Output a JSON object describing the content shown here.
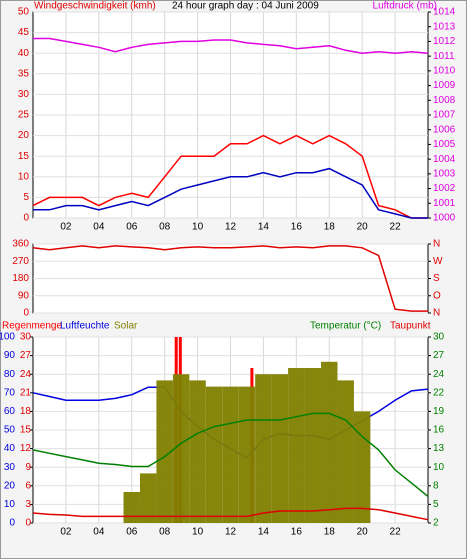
{
  "chart_data": [
    {
      "type": "line",
      "title": "24 hour graph day : 04 Juni 2009",
      "ylabel": "Windgeschwindigkeit (kmh)",
      "y2label": "Luftdruck (mb)",
      "x": [
        0,
        1,
        2,
        3,
        4,
        5,
        6,
        7,
        8,
        9,
        10,
        11,
        12,
        13,
        14,
        15,
        16,
        17,
        18,
        19,
        20,
        21,
        22,
        23,
        24
      ],
      "xticks": [
        {
          "value": 2,
          "label": "02"
        },
        {
          "value": 4,
          "label": "04"
        },
        {
          "value": 6,
          "label": "06"
        },
        {
          "value": 8,
          "label": "08"
        },
        10,
        12,
        14,
        16,
        18,
        20,
        22
      ],
      "xlim": [
        0,
        24
      ],
      "ylim": [
        0,
        50
      ],
      "yticks": [
        0,
        5,
        10,
        15,
        20,
        25,
        30,
        35,
        40,
        45,
        50
      ],
      "ycolor": "#e00000",
      "y2lim": [
        1000,
        1014
      ],
      "y2ticks": [
        1000,
        1001,
        1002,
        1003,
        1004,
        1005,
        1006,
        1007,
        1008,
        1009,
        1010,
        1011,
        1012,
        1013,
        1014
      ],
      "y2color": "#e000e0",
      "grid": true,
      "series": [
        {
          "color": "#ff0000",
          "values": [
            3,
            5,
            5,
            5,
            3,
            5,
            6,
            5,
            10,
            15,
            15,
            15,
            18,
            18,
            20,
            18,
            20,
            18,
            20,
            18,
            15,
            3,
            2,
            0,
            0
          ]
        },
        {
          "color": "#0000c0",
          "values": [
            2,
            2,
            3,
            3,
            2,
            3,
            4,
            3,
            5,
            7,
            8,
            9,
            10,
            10,
            11,
            10,
            11,
            11,
            12,
            10,
            8,
            2,
            1,
            0,
            0
          ]
        },
        {
          "color": "#e000e0",
          "axis": "y2",
          "values": [
            1012.2,
            1012.2,
            1012,
            1011.8,
            1011.6,
            1011.3,
            1011.6,
            1011.8,
            1011.9,
            1012,
            1012,
            1012.1,
            1012.1,
            1011.9,
            1011.8,
            1011.7,
            1011.5,
            1011.6,
            1011.7,
            1011.4,
            1011.2,
            1011.3,
            1011.2,
            1011.3,
            1011.2
          ]
        }
      ]
    },
    {
      "type": "line",
      "x": [
        0,
        1,
        2,
        3,
        4,
        5,
        6,
        7,
        8,
        9,
        10,
        11,
        12,
        13,
        14,
        15,
        16,
        17,
        18,
        19,
        20,
        21,
        22,
        23,
        24
      ],
      "xlim": [
        0,
        24
      ],
      "ylim": [
        0,
        360
      ],
      "yticks": [
        0,
        90,
        180,
        270,
        360
      ],
      "ycolor": "#e00000",
      "y2lim": [
        0,
        360
      ],
      "y2ticks": [
        {
          "value": 0,
          "label": "N"
        },
        {
          "value": 90,
          "label": "O"
        },
        {
          "value": 180,
          "label": "S"
        },
        {
          "value": 270,
          "label": "W"
        },
        {
          "value": 360,
          "label": "N"
        }
      ],
      "y2color": "#e00000",
      "grid": true,
      "series": [
        {
          "color": "#e00000",
          "values": [
            340,
            330,
            340,
            350,
            340,
            350,
            345,
            340,
            330,
            340,
            345,
            340,
            340,
            345,
            350,
            340,
            345,
            340,
            350,
            350,
            340,
            300,
            20,
            10,
            10
          ]
        }
      ]
    },
    {
      "type": "line",
      "x": [
        0,
        1,
        2,
        3,
        4,
        5,
        6,
        7,
        8,
        9,
        10,
        11,
        12,
        13,
        14,
        15,
        16,
        17,
        18,
        19,
        20,
        21,
        22,
        23,
        24
      ],
      "xticks": [
        {
          "value": 2,
          "label": "02"
        },
        {
          "value": 4,
          "label": "04"
        },
        {
          "value": 6,
          "label": "06"
        },
        {
          "value": 8,
          "label": "08"
        },
        10,
        12,
        14,
        16,
        18,
        20,
        22
      ],
      "xlim": [
        0,
        24
      ],
      "ylim": [
        0,
        100
      ],
      "yticks": [
        0,
        10,
        20,
        30,
        40,
        50,
        60,
        70,
        80,
        90,
        100
      ],
      "ycolor": "#0000e0",
      "y3lim": [
        0,
        30
      ],
      "y3ticks": [
        0,
        3,
        6,
        9,
        12,
        15,
        18,
        21,
        24,
        27,
        30
      ],
      "y3color": "#e00000",
      "y2lim": [
        2,
        30
      ],
      "y2ticks": [
        2,
        {
          "value": 4.8,
          "label": "5"
        },
        {
          "value": 7.6,
          "label": "8"
        },
        {
          "value": 10.4,
          "label": "10"
        },
        {
          "value": 13.2,
          "label": "13"
        },
        16,
        {
          "value": 18.8,
          "label": "19"
        },
        {
          "value": 21.6,
          "label": "22"
        },
        {
          "value": 24.4,
          "label": "24"
        },
        {
          "value": 27.2,
          "label": "27"
        },
        30
      ],
      "y2color": "#008000",
      "grid": true,
      "series": [
        {
          "name": "Regenmenge",
          "color": "#ff0000",
          "type": "bar",
          "axis": "y3",
          "x": [
            8.7,
            8.95,
            13.3
          ],
          "values": [
            30,
            30,
            25
          ]
        },
        {
          "name": "Luftfeuchte",
          "color": "#0000e0",
          "values": [
            70,
            68,
            66,
            66,
            66,
            67,
            69,
            73,
            73,
            60,
            52,
            45,
            40,
            35,
            45,
            48,
            47,
            47,
            45,
            50,
            55,
            60,
            66,
            71,
            72
          ]
        },
        {
          "name": "Solar",
          "color": "#808000",
          "type": "bar",
          "axis": "y3",
          "values": [
            0,
            0,
            0,
            0,
            0,
            0,
            5,
            8,
            23,
            24,
            23,
            22,
            22,
            22,
            24,
            24,
            25,
            25,
            26,
            23,
            18,
            0,
            0,
            0,
            0
          ]
        },
        {
          "name": "Temperatur (°C)",
          "color": "#008000",
          "axis": "y2",
          "values": [
            13,
            12.5,
            12,
            11.5,
            11,
            10.8,
            10.5,
            10.5,
            12,
            14,
            15.5,
            16.5,
            17,
            17.5,
            17.5,
            17.5,
            18,
            18.5,
            18.5,
            17.5,
            15,
            13,
            10,
            8,
            6
          ]
        },
        {
          "name": "Taupunkt",
          "color": "#e00000",
          "axis": "y2",
          "values": [
            3.5,
            3.3,
            3.2,
            3,
            3,
            3,
            3,
            3,
            3,
            3,
            3,
            3,
            3,
            3,
            3.5,
            3.8,
            3.8,
            3.8,
            4,
            4.2,
            4.2,
            4,
            3.5,
            3,
            2.5
          ]
        }
      ]
    }
  ]
}
